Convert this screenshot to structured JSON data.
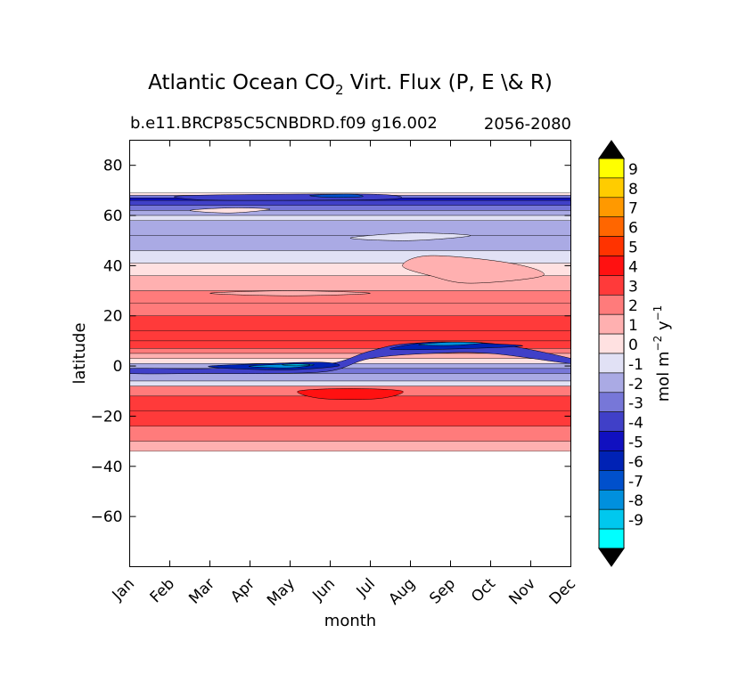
{
  "chart_data": {
    "type": "heatmap",
    "title_main": "Atlantic Ocean CO",
    "title_sub_2": "2",
    "title_rest": " Virt. Flux (P, E \\& R)",
    "subtitle_left": "b.e11.BRCP85C5CNBDRD.f09 g16.002",
    "subtitle_right": "2056-2080",
    "xlabel": "month",
    "ylabel": "latitude",
    "x_categories": [
      "Jan",
      "Feb",
      "Mar",
      "Apr",
      "May",
      "Jun",
      "Jul",
      "Aug",
      "Sep",
      "Oct",
      "Nov",
      "Dec"
    ],
    "xlim": [
      0,
      11
    ],
    "ylim": [
      -80,
      90
    ],
    "y_ticks": [
      80,
      60,
      40,
      20,
      0,
      -20,
      -40,
      -60
    ],
    "y_tick_labels": [
      "80",
      "60",
      "40",
      "20",
      "0",
      "−20",
      "−40",
      "−60"
    ],
    "data_lat_range": [
      -34,
      69
    ],
    "colorbar": {
      "label_main": "mol m",
      "label_exp1": "−2",
      "label_mid": " y",
      "label_exp2": "−1",
      "levels": [
        9,
        8,
        7,
        6,
        5,
        4,
        3,
        2,
        1,
        0,
        -1,
        -2,
        -3,
        -4,
        -5,
        -6,
        -7,
        -8,
        -9
      ],
      "level_labels": [
        "9",
        "8",
        "7",
        "6",
        "5",
        "4",
        "3",
        "2",
        "1",
        "0",
        "-1",
        "-2",
        "-3",
        "-4",
        "-5",
        "-6",
        "-7",
        "-8",
        "-9"
      ],
      "bin_colors": [
        "#ffff00",
        "#ffcc00",
        "#ff9900",
        "#ff6600",
        "#ff3300",
        "#ff1111",
        "#ff3a3a",
        "#ff7b7b",
        "#ffb0b0",
        "#ffe1e1",
        "#e1e1f5",
        "#aaaae4",
        "#7777d8",
        "#4040c8",
        "#1010c0",
        "#0022b5",
        "#0050cc",
        "#0090dd",
        "#00c8ee",
        "#00ffff"
      ],
      "extend_colors": [
        "#000000",
        "#000000"
      ]
    },
    "lat_bands": [
      {
        "lat": 69,
        "value": 0
      },
      {
        "lat": 68,
        "value": -3
      },
      {
        "lat": 67,
        "value": -5
      },
      {
        "lat": 66,
        "value": -4
      },
      {
        "lat": 64,
        "value": -3
      },
      {
        "lat": 62,
        "value": -2
      },
      {
        "lat": 60,
        "value": -1
      },
      {
        "lat": 58,
        "value": -2
      },
      {
        "lat": 52,
        "value": -2
      },
      {
        "lat": 46,
        "value": -1
      },
      {
        "lat": 41,
        "value": 0
      },
      {
        "lat": 36,
        "value": 1
      },
      {
        "lat": 30,
        "value": 2
      },
      {
        "lat": 25,
        "value": 2
      },
      {
        "lat": 20,
        "value": 3
      },
      {
        "lat": 14,
        "value": 3
      },
      {
        "lat": 10,
        "value": 3
      },
      {
        "lat": 7,
        "value": 2
      },
      {
        "lat": 5,
        "value": 1
      },
      {
        "lat": 3,
        "value": 0
      },
      {
        "lat": 1,
        "value": -2
      },
      {
        "lat": -1,
        "value": -3
      },
      {
        "lat": -3,
        "value": -2
      },
      {
        "lat": -6,
        "value": -1
      },
      {
        "lat": -8,
        "value": 2
      },
      {
        "lat": -12,
        "value": 3
      },
      {
        "lat": -18,
        "value": 3
      },
      {
        "lat": -24,
        "value": 2
      },
      {
        "lat": -30,
        "value": 1
      },
      {
        "lat": -34,
        "value": 1
      }
    ],
    "features": [
      {
        "name": "itcz-trough",
        "value": -4,
        "points": [
          [
            0,
            -1
          ],
          [
            2,
            -1
          ],
          [
            3.5,
            1
          ],
          [
            5,
            1
          ],
          [
            6,
            6
          ],
          [
            7,
            9
          ],
          [
            9,
            9
          ],
          [
            11,
            3
          ],
          [
            11,
            1
          ],
          [
            9,
            5
          ],
          [
            7.5,
            5
          ],
          [
            6,
            3
          ],
          [
            5,
            -2
          ],
          [
            3.5,
            -3
          ],
          [
            2,
            -3
          ],
          [
            0,
            -3
          ]
        ]
      },
      {
        "name": "itcz-core",
        "value": -6,
        "points": [
          [
            2,
            0
          ],
          [
            3.5,
            1
          ],
          [
            4.8,
            1.5
          ],
          [
            5.2,
            0
          ],
          [
            4,
            -1.5
          ],
          [
            2.5,
            -1
          ]
        ]
      },
      {
        "name": "itcz-core-east",
        "value": -6,
        "points": [
          [
            6.5,
            7
          ],
          [
            7.5,
            9.5
          ],
          [
            8.8,
            9
          ],
          [
            9.8,
            8
          ],
          [
            8.5,
            7
          ],
          [
            7,
            6.5
          ]
        ]
      },
      {
        "name": "itcz-min",
        "value": -8,
        "points": [
          [
            3,
            0
          ],
          [
            4,
            0.8
          ],
          [
            4.6,
            0.5
          ],
          [
            4,
            -0.7
          ],
          [
            3.3,
            -0.5
          ]
        ]
      },
      {
        "name": "itcz-min-east",
        "value": -8,
        "points": [
          [
            7.2,
            8.5
          ],
          [
            8,
            9.5
          ],
          [
            8.8,
            9.2
          ],
          [
            8,
            8.2
          ]
        ]
      },
      {
        "name": "itcz-max",
        "value": -9,
        "points": [
          [
            3.8,
            0.5
          ],
          [
            4.2,
            0.8
          ],
          [
            4.5,
            0.4
          ],
          [
            4.1,
            0.1
          ]
        ]
      },
      {
        "name": "south-max",
        "value": 4,
        "points": [
          [
            4.2,
            -10
          ],
          [
            5.5,
            -9
          ],
          [
            6.8,
            -10
          ],
          [
            6.2,
            -13
          ],
          [
            4.8,
            -13
          ]
        ]
      },
      {
        "name": "north-hl-core",
        "value": -4,
        "points": [
          [
            1.5,
            68
          ],
          [
            6,
            68.5
          ],
          [
            6.5,
            66.5
          ],
          [
            3,
            66
          ],
          [
            1.5,
            66.5
          ]
        ]
      },
      {
        "name": "north-hl-min",
        "value": -7,
        "points": [
          [
            4.5,
            68
          ],
          [
            5.5,
            68.5
          ],
          [
            5.8,
            67.5
          ],
          [
            5,
            67.2
          ]
        ]
      },
      {
        "name": "north-white-1",
        "value": 0,
        "points": [
          [
            1.5,
            62
          ],
          [
            2.5,
            63
          ],
          [
            3.5,
            62.5
          ],
          [
            2.5,
            61
          ]
        ]
      },
      {
        "name": "north-white-2",
        "value": -1,
        "points": [
          [
            5.5,
            51
          ],
          [
            7,
            53
          ],
          [
            8.5,
            52
          ],
          [
            7,
            50
          ]
        ]
      },
      {
        "name": "subtrop-white",
        "value": 1,
        "points": [
          [
            6.8,
            40
          ],
          [
            7.5,
            44
          ],
          [
            9.5,
            41
          ],
          [
            10.3,
            36
          ],
          [
            8.5,
            33
          ],
          [
            7.5,
            36
          ]
        ]
      },
      {
        "name": "subtrop-band",
        "value": 1,
        "points": [
          [
            2,
            29
          ],
          [
            4,
            30
          ],
          [
            6,
            29
          ],
          [
            4,
            28
          ]
        ]
      }
    ]
  }
}
